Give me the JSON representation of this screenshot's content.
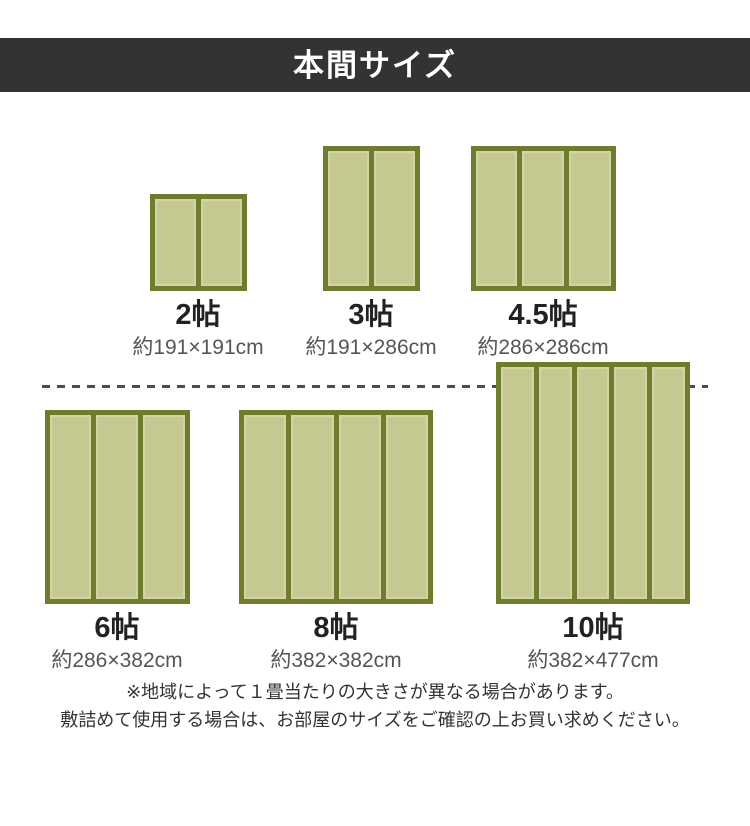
{
  "header": {
    "title": "本間サイズ"
  },
  "mats": [
    {
      "label": "2帖",
      "dims": "約191×191cm",
      "panels": 2,
      "width_cm": 191,
      "height_cm": 191
    },
    {
      "label": "3帖",
      "dims": "約191×286cm",
      "panels": 2,
      "width_cm": 191,
      "height_cm": 286
    },
    {
      "label": "4.5帖",
      "dims": "約286×286cm",
      "panels": 3,
      "width_cm": 286,
      "height_cm": 286
    },
    {
      "label": "6帖",
      "dims": "約286×382cm",
      "panels": 3,
      "width_cm": 286,
      "height_cm": 382
    },
    {
      "label": "8帖",
      "dims": "約382×382cm",
      "panels": 4,
      "width_cm": 382,
      "height_cm": 382
    },
    {
      "label": "10帖",
      "dims": "約382×477cm",
      "panels": 5,
      "width_cm": 382,
      "height_cm": 477
    }
  ],
  "footer": {
    "line1": "※地域によって１畳当たりの大きさが異なる場合があります。",
    "line2": "敷詰めて使用する場合は、お部屋のサイズをご確認の上お買い求めください。"
  },
  "colors": {
    "header_bg": "#333333",
    "mat_border": "#6f7c2e",
    "mat_fill": "#c6c892",
    "mat_highlight": "#d3d4a4",
    "label_color": "#222222",
    "dims_color": "#555555",
    "dash_color": "#4d4d4d",
    "footer_color": "#333333"
  }
}
